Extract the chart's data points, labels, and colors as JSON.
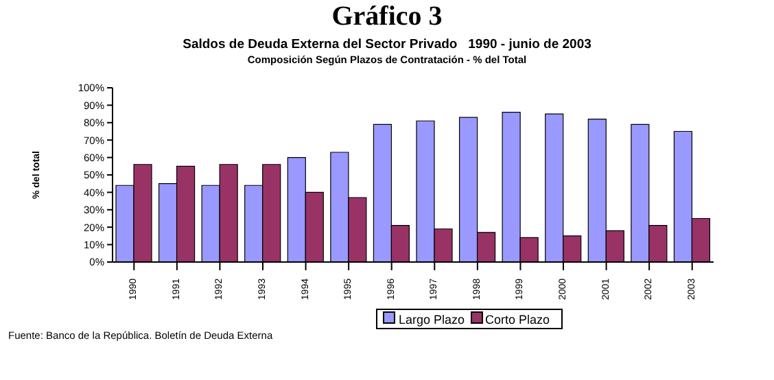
{
  "chart_data": {
    "type": "bar",
    "title": "Gráfico 3",
    "subtitle": "Saldos de Deuda Externa del Sector Privado   1990 - junio de 2003",
    "annotations": [
      "Composición Según Plazos de Contratación - % del Total",
      "Fuente: Banco de la República. Boletín de Deuda Externa"
    ],
    "ylabel": "% del total",
    "categories": [
      "1990",
      "1991",
      "1992",
      "1993",
      "1994",
      "1995",
      "1996",
      "1997",
      "1998",
      "1999",
      "2000",
      "2001",
      "2002",
      "2003"
    ],
    "series": [
      {
        "name": "Largo Plazo",
        "color": "#9999ff",
        "values": [
          44,
          45,
          44,
          44,
          60,
          63,
          79,
          81,
          83,
          86,
          85,
          82,
          79,
          75
        ]
      },
      {
        "name": "Corto Plazo",
        "color": "#993366",
        "values": [
          56,
          55,
          56,
          56,
          40,
          37,
          21,
          19,
          17,
          14,
          15,
          18,
          21,
          25
        ]
      }
    ],
    "ylim": [
      0,
      100
    ],
    "yticks": [
      {
        "value": 0,
        "label": "0%"
      },
      {
        "value": 10,
        "label": "10%"
      },
      {
        "value": 20,
        "label": "20%"
      },
      {
        "value": 30,
        "label": "30%"
      },
      {
        "value": 40,
        "label": "40%"
      },
      {
        "value": 50,
        "label": "50%"
      },
      {
        "value": 60,
        "label": "60%"
      },
      {
        "value": 70,
        "label": "70%"
      },
      {
        "value": 80,
        "label": "80%"
      },
      {
        "value": 90,
        "label": "90%"
      },
      {
        "value": 100,
        "label": "100%"
      }
    ],
    "legend": "bottom"
  }
}
